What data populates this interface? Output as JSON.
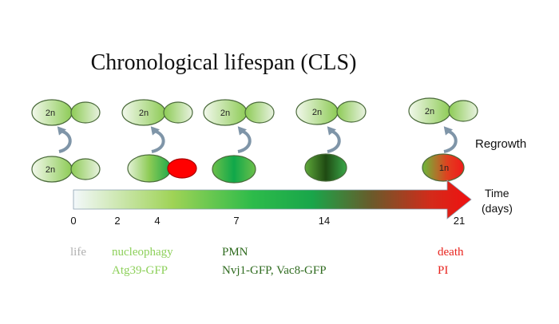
{
  "title": "Chronological lifespan (CLS)",
  "regrowth_label": "Regrowth",
  "time_label_line1": "Time",
  "time_label_line2": "(days)",
  "ticks": [
    "0",
    "2",
    "4",
    "7",
    "14",
    "21"
  ],
  "cells": {
    "top_ploidy": [
      "2n",
      "2n",
      "2n",
      "2n",
      "2n"
    ],
    "bottom_first": "2n",
    "bottom_last": "1n"
  },
  "stages": {
    "life": "life",
    "nucleophagy": "nucleophagy",
    "atg39": "Atg39-GFP",
    "pmn": "PMN",
    "pmn_markers": "Nvj1-GFP, Vac8-GFP",
    "death": "death",
    "pi": "PI"
  },
  "colors": {
    "life": "#b0b0b0",
    "nucleophagy": "#8dd05a",
    "pmn": "#2f6b1f",
    "death": "#e8231d",
    "arrow_curve": "#7f95a8"
  }
}
